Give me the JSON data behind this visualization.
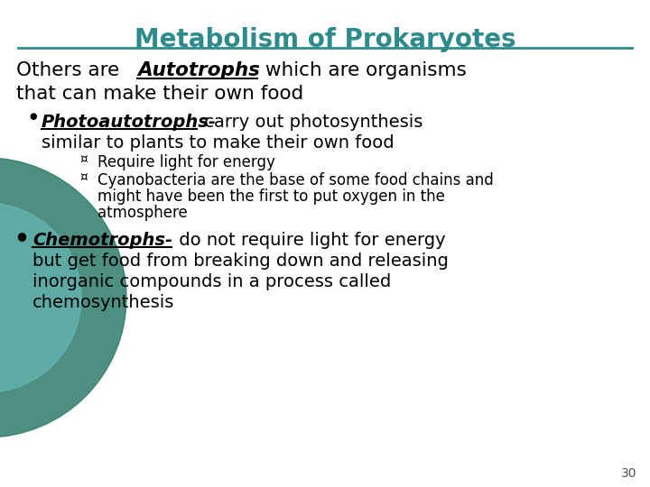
{
  "title": "Metabolism of Prokaryotes",
  "title_color": "#2E8B8B",
  "title_fontsize": 20,
  "background_color": "#ffffff",
  "page_number": "30",
  "teal_circle_color": "#2E8B57",
  "line_color": "#2E8B8B",
  "text_color": "#000000",
  "content": {
    "intro_pre": "Others are ",
    "intro_bold": "Autotrophs",
    "intro_post": " which are organisms",
    "intro_line2": "that can make their own food",
    "bullet1_label": "Photoautotrophs-",
    "bullet1_text": " carry out photosynthesis",
    "bullet1_line2": "similar to plants to make their own food",
    "sub1": "Require light for energy",
    "sub2_line1": "Cyanobacteria are the base of some food chains and",
    "sub2_line2": "might have been the first to put oxygen in the",
    "sub2_line3": "atmosphere",
    "bullet2_label": "Chemotrophs-",
    "bullet2_text": " do not require light for energy",
    "bullet2_line2": "but get food from breaking down and releasing",
    "bullet2_line3": "inorganic compounds in a process called",
    "bullet2_line4": "chemosynthesis"
  }
}
